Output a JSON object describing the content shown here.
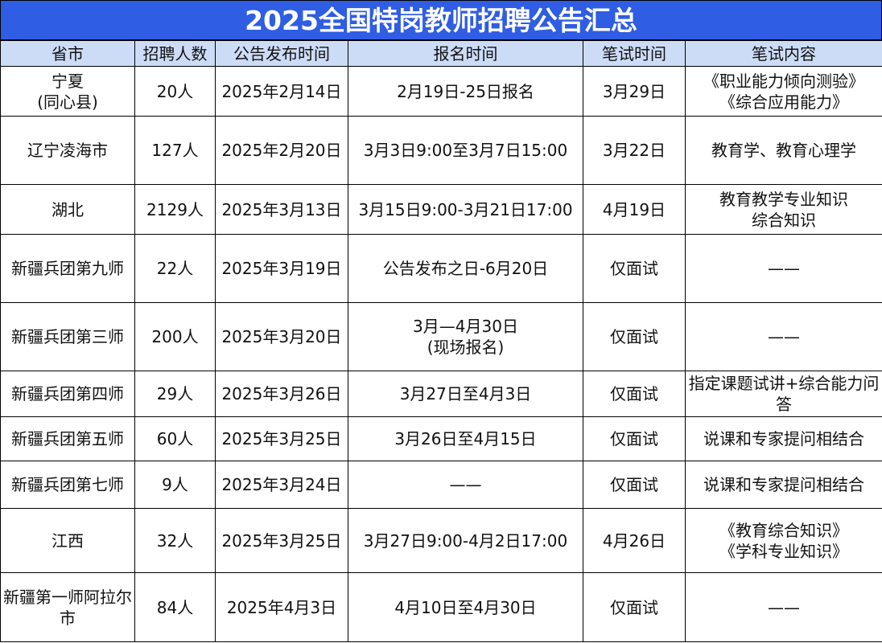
{
  "title": "2025全国特岗教师招聘公告汇总",
  "colors": {
    "title_bg": "#2f5de3",
    "header_bg": "#cddcf6"
  },
  "headers": [
    "省市",
    "招聘人数",
    "公告发布时间",
    "报名时间",
    "笔试时间",
    "笔试内容"
  ],
  "rows": [
    [
      "宁夏\n(同心县)",
      "20人",
      "2025年2月14日",
      "2月19日-25日报名",
      "3月29日",
      "《职业能力倾向测验》\n《综合应用能力》"
    ],
    [
      "辽宁凌海市",
      "127人",
      "2025年2月20日",
      "3月3日9:00至3月7日15:00",
      "3月22日",
      "教育学、教育心理学"
    ],
    [
      "湖北",
      "2129人",
      "2025年3月13日",
      "3月15日9:00-3月21日17:00",
      "4月19日",
      "教育教学专业知识\n综合知识"
    ],
    [
      "新疆兵团第九师",
      "22人",
      "2025年3月19日",
      "公告发布之日-6月20日",
      "仅面试",
      "——"
    ],
    [
      "新疆兵团第三师",
      "200人",
      "2025年3月20日",
      "3月—4月30日\n(现场报名)",
      "仅面试",
      "——"
    ],
    [
      "新疆兵团第四师",
      "29人",
      "2025年3月26日",
      "3月27日至4月3日",
      "仅面试",
      "指定课题试讲+综合能力问答"
    ],
    [
      "新疆兵团第五师",
      "60人",
      "2025年3月25日",
      "3月26日至4月15日",
      "仅面试",
      "说课和专家提问相结合"
    ],
    [
      "新疆兵团第七师",
      "9人",
      "2025年3月24日",
      "——",
      "仅面试",
      "说课和专家提问相结合"
    ],
    [
      "江西",
      "32人",
      "2025年3月25日",
      "3月27日9:00-4月2日17:00",
      "4月26日",
      "《教育综合知识》\n《学科专业知识》"
    ],
    [
      "新疆第一师阿拉尔市",
      "84人",
      "2025年4月3日",
      "4月10日至4月30日",
      "仅面试",
      "——"
    ]
  ]
}
